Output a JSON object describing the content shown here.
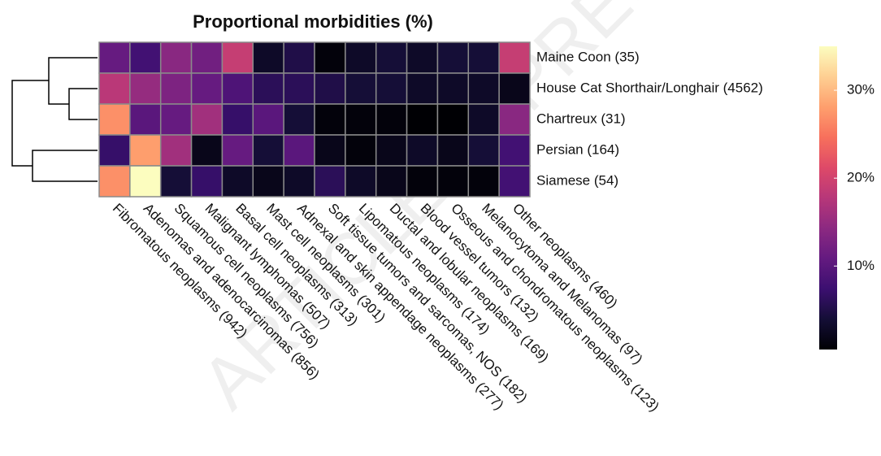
{
  "chart_data": {
    "type": "heatmap",
    "title": "Proportional morbidities (%)",
    "watermark": "ARTICLE IN PRESS",
    "colormap": "magma",
    "rows": [
      "Maine Coon (35)",
      "House Cat Shorthair/Longhair (4562)",
      "Chartreux (31)",
      "Persian (164)",
      "Siamese (54)"
    ],
    "categories": [
      "Fibromatous neoplasms (942)",
      "Adenomas and adenocarcinomas (856)",
      "Squamous cell neoplasms (756)",
      "Malignant lymphomas (507)",
      "Basal cell neoplasms (313)",
      "Mast cell neoplasms (301)",
      "Adnexal and skin appendage neoplasms (277)",
      "Soft tissue tumors and sarcomas, NOS (182)",
      "Lipomatous neoplasms (174)",
      "Ductal and lobular neoplasms (169)",
      "Blood vessel tumors (132)",
      "Osseous and chondromatous neoplasms (123)",
      "Melanocytoma and Melanomas (97)",
      "Other neoplasms (460)"
    ],
    "values": [
      [
        11,
        8,
        14,
        12,
        19,
        3,
        5,
        1,
        3,
        4,
        3,
        4,
        4,
        19
      ],
      [
        18,
        15,
        13,
        11,
        9,
        6,
        6,
        5,
        4,
        4,
        3,
        3,
        3,
        2
      ],
      [
        27,
        10,
        11,
        16,
        7,
        10,
        4,
        1,
        1,
        1,
        0.5,
        0.5,
        3,
        14
      ],
      [
        7,
        28,
        16,
        2,
        11,
        4,
        10,
        2,
        1,
        2,
        3,
        2,
        4,
        8
      ],
      [
        27,
        35,
        4,
        7,
        3,
        2,
        3,
        6,
        3,
        2,
        1,
        1,
        1,
        8
      ]
    ],
    "zlim": [
      0.5,
      35
    ],
    "zticks": [
      {
        "value": 10,
        "label": "10%"
      },
      {
        "value": 20,
        "label": "20%"
      },
      {
        "value": 30,
        "label": "30%"
      }
    ]
  }
}
